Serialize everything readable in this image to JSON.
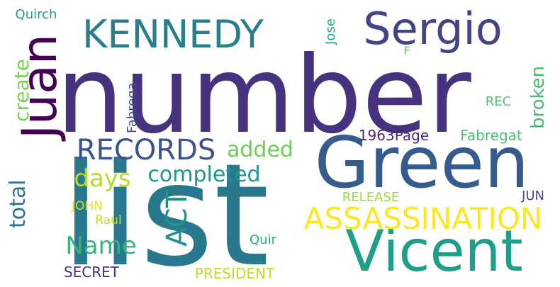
{
  "background_color": "#ffffff",
  "words": {
    "list": {
      "text": "list",
      "color": "#2a788e"
    },
    "number": {
      "text": "number",
      "color": "#46327e"
    },
    "green": {
      "text": "Green",
      "color": "#365c8d"
    },
    "vicent": {
      "text": "Vicent",
      "color": "#1f9e89"
    },
    "sergio": {
      "text": "Sergio",
      "color": "#414487"
    },
    "kennedy": {
      "text": "KENNEDY",
      "color": "#277f8e"
    },
    "juan": {
      "text": "Juan",
      "color": "#440154"
    },
    "assassination": {
      "text": "ASSASSINATION",
      "color": "#fde725"
    },
    "records": {
      "text": "RECORDS",
      "color": "#3b528b"
    },
    "act": {
      "text": "ACT",
      "color": "#21918c"
    },
    "completed": {
      "text": "completed",
      "color": "#1f968b"
    },
    "added": {
      "text": "added",
      "color": "#6ece58"
    },
    "days": {
      "text": "days",
      "color": "#b5de2b"
    },
    "create": {
      "text": "create",
      "color": "#7ad151"
    },
    "total": {
      "text": "total",
      "color": "#2c728e"
    },
    "name": {
      "text": "Name",
      "color": "#35b779"
    },
    "broken": {
      "text": "broken",
      "color": "#44bf70"
    },
    "page1963": {
      "text": "1963Page",
      "color": "#482677"
    },
    "fabregat": {
      "text": "Fabregat",
      "color": "#4ac16d"
    },
    "release": {
      "text": "RELEASE",
      "color": "#a0da39"
    },
    "fabrega": {
      "text": "Fabrega",
      "color": "#3e4a89"
    },
    "jose": {
      "text": "Jose",
      "color": "#22a884"
    },
    "f": {
      "text": "F",
      "color": "#5ec962"
    },
    "rec": {
      "text": "REC",
      "color": "#54c568"
    },
    "quirch": {
      "text": "Quirch",
      "color": "#1e9b8a"
    },
    "jun": {
      "text": "JUN",
      "color": "#3e4c8a"
    },
    "john": {
      "text": "JOHN",
      "color": "#dde318"
    },
    "raul": {
      "text": "Raul",
      "color": "#c0df25"
    },
    "quir": {
      "text": "Quir",
      "color": "#25ac82"
    },
    "secret": {
      "text": "SECRET",
      "color": "#472d7b"
    },
    "president": {
      "text": "PRESIDENT",
      "color": "#bddf26"
    }
  }
}
